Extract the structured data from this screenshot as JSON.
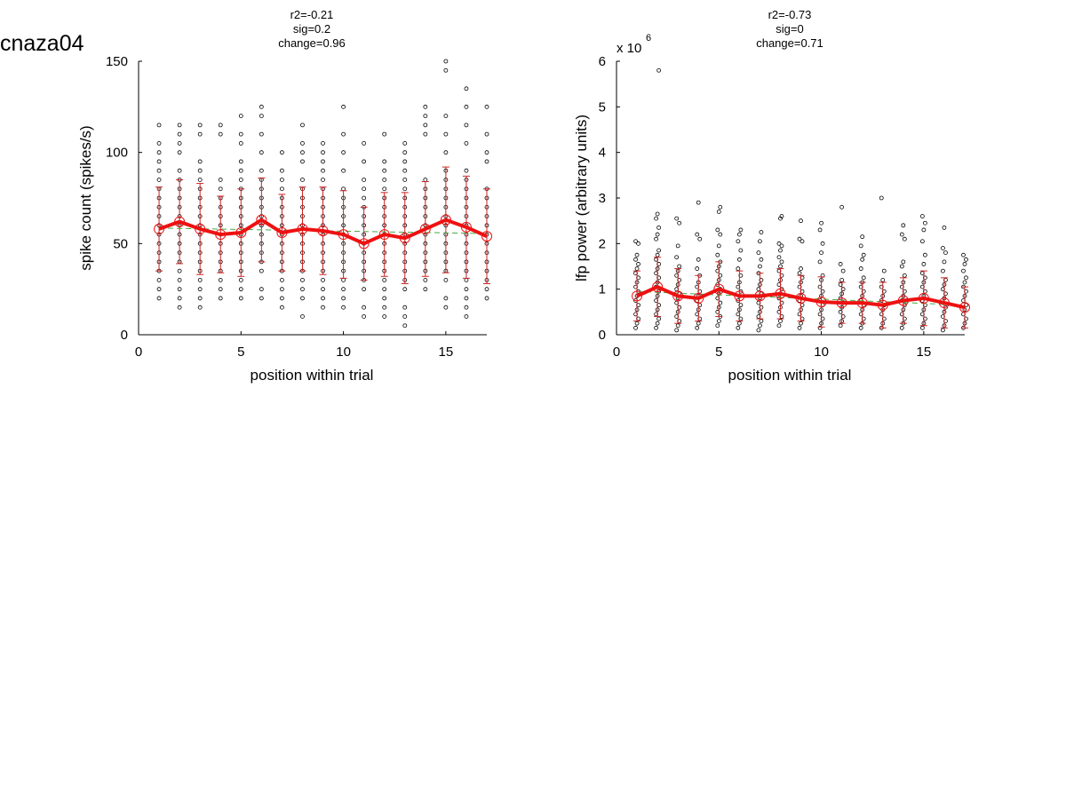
{
  "figure_title": "cnaza04",
  "chart_data": [
    {
      "type": "scatter",
      "stats": [
        "r2=-0.21",
        "sig=0.2",
        "change=0.96"
      ],
      "xlabel": "position within trial",
      "ylabel": "spike count (spikes/s)",
      "xlim": [
        0,
        17
      ],
      "ylim": [
        0,
        150
      ],
      "xticks": [
        0,
        5,
        10,
        15
      ],
      "yticks": [
        0,
        50,
        100,
        150
      ],
      "exponent_label": "",
      "grid": false,
      "colors": {
        "points": "#000000",
        "mean": "#ee1111",
        "errorbar": "#cc2222",
        "fit": "#44aa44"
      },
      "mean": [
        58,
        62,
        58,
        55,
        56,
        63,
        56,
        58,
        57,
        55,
        50,
        55,
        53,
        58,
        63,
        59,
        54
      ],
      "sd": [
        23,
        23,
        25,
        21,
        24,
        23,
        21,
        23,
        24,
        24,
        20,
        23,
        25,
        26,
        29,
        28,
        26
      ],
      "fit_line": {
        "x": [
          1,
          17
        ],
        "y": [
          58.5,
          55.5
        ]
      },
      "points": [
        [
          20,
          25,
          30,
          35,
          40,
          45,
          50,
          55,
          60,
          65,
          70,
          75,
          80,
          85,
          90,
          95,
          100,
          105,
          115
        ],
        [
          15,
          20,
          25,
          30,
          35,
          40,
          45,
          50,
          55,
          60,
          65,
          70,
          75,
          80,
          85,
          90,
          100,
          105,
          110,
          115
        ],
        [
          15,
          20,
          25,
          30,
          35,
          40,
          45,
          50,
          55,
          60,
          65,
          70,
          75,
          80,
          85,
          90,
          95,
          110,
          115
        ],
        [
          20,
          25,
          30,
          35,
          40,
          45,
          50,
          55,
          60,
          65,
          70,
          75,
          80,
          85,
          110,
          115
        ],
        [
          20,
          25,
          30,
          35,
          40,
          45,
          50,
          55,
          60,
          65,
          70,
          75,
          80,
          85,
          90,
          95,
          105,
          110,
          120
        ],
        [
          20,
          25,
          35,
          40,
          45,
          50,
          55,
          60,
          65,
          70,
          75,
          80,
          85,
          90,
          100,
          110,
          120,
          125
        ],
        [
          15,
          20,
          25,
          30,
          35,
          40,
          45,
          50,
          55,
          60,
          65,
          70,
          75,
          80,
          85,
          90,
          100
        ],
        [
          10,
          20,
          25,
          30,
          35,
          40,
          45,
          50,
          55,
          60,
          65,
          70,
          75,
          80,
          85,
          95,
          100,
          105,
          115
        ],
        [
          15,
          20,
          25,
          30,
          35,
          40,
          45,
          50,
          55,
          60,
          65,
          70,
          75,
          80,
          85,
          90,
          95,
          100,
          105
        ],
        [
          15,
          20,
          25,
          30,
          35,
          40,
          45,
          50,
          55,
          60,
          65,
          70,
          75,
          80,
          90,
          100,
          110,
          125
        ],
        [
          10,
          15,
          25,
          30,
          35,
          40,
          45,
          50,
          55,
          60,
          65,
          70,
          75,
          80,
          85,
          95,
          105
        ],
        [
          10,
          15,
          20,
          25,
          30,
          35,
          40,
          45,
          50,
          55,
          60,
          65,
          70,
          75,
          80,
          85,
          90,
          95,
          110
        ],
        [
          5,
          10,
          15,
          25,
          30,
          35,
          40,
          45,
          50,
          55,
          60,
          65,
          70,
          75,
          80,
          85,
          90,
          95,
          100,
          105
        ],
        [
          25,
          30,
          35,
          40,
          45,
          50,
          55,
          60,
          65,
          70,
          75,
          80,
          85,
          110,
          115,
          120,
          125
        ],
        [
          15,
          20,
          30,
          35,
          40,
          45,
          50,
          55,
          60,
          65,
          70,
          75,
          80,
          85,
          90,
          100,
          110,
          120,
          145,
          150
        ],
        [
          10,
          15,
          20,
          25,
          30,
          35,
          40,
          45,
          50,
          55,
          60,
          65,
          70,
          75,
          80,
          85,
          90,
          105,
          115,
          125,
          135
        ],
        [
          20,
          25,
          30,
          35,
          40,
          45,
          50,
          55,
          60,
          65,
          70,
          75,
          80,
          95,
          100,
          110,
          125
        ]
      ]
    },
    {
      "type": "scatter",
      "stats": [
        "r2=-0.73",
        "sig=0",
        "change=0.71"
      ],
      "xlabel": "position within trial",
      "ylabel": "lfp power (arbitrary units)",
      "xlim": [
        0,
        17
      ],
      "ylim": [
        0,
        6
      ],
      "xticks": [
        0,
        5,
        10,
        15
      ],
      "yticks": [
        0,
        1,
        2,
        3,
        4,
        5,
        6
      ],
      "exponent_label": "x 10",
      "exponent_value": "6",
      "grid": false,
      "colors": {
        "points": "#000000",
        "mean": "#ee1111",
        "errorbar": "#cc2222",
        "fit": "#44aa44"
      },
      "mean": [
        0.85,
        1.05,
        0.85,
        0.8,
        1.0,
        0.85,
        0.85,
        0.9,
        0.8,
        0.72,
        0.7,
        0.7,
        0.65,
        0.75,
        0.8,
        0.7,
        0.6
      ],
      "sd": [
        0.55,
        0.65,
        0.6,
        0.5,
        0.6,
        0.55,
        0.5,
        0.55,
        0.5,
        0.55,
        0.45,
        0.45,
        0.5,
        0.5,
        0.6,
        0.55,
        0.45
      ],
      "fit_line": {
        "x": [
          1,
          17
        ],
        "y": [
          0.95,
          0.65
        ]
      },
      "points": [
        [
          0.15,
          0.25,
          0.35,
          0.45,
          0.55,
          0.65,
          0.75,
          0.85,
          0.95,
          1.05,
          1.15,
          1.25,
          1.35,
          1.45,
          1.55,
          1.65,
          1.75,
          2.0,
          2.05
        ],
        [
          0.15,
          0.25,
          0.35,
          0.45,
          0.55,
          0.65,
          0.75,
          0.85,
          0.95,
          1.05,
          1.15,
          1.25,
          1.35,
          1.45,
          1.55,
          1.65,
          1.75,
          1.85,
          2.1,
          2.2,
          2.35,
          2.55,
          2.65,
          5.8
        ],
        [
          0.1,
          0.2,
          0.3,
          0.4,
          0.5,
          0.6,
          0.7,
          0.8,
          0.9,
          1.0,
          1.1,
          1.2,
          1.3,
          1.4,
          1.5,
          1.7,
          1.95,
          2.45,
          2.55
        ],
        [
          0.15,
          0.25,
          0.35,
          0.45,
          0.55,
          0.65,
          0.75,
          0.85,
          0.95,
          1.05,
          1.15,
          1.3,
          1.45,
          1.65,
          2.1,
          2.2,
          2.9
        ],
        [
          0.2,
          0.3,
          0.4,
          0.5,
          0.6,
          0.7,
          0.8,
          0.9,
          1.0,
          1.1,
          1.2,
          1.3,
          1.4,
          1.5,
          1.6,
          1.75,
          1.95,
          2.2,
          2.3,
          2.7,
          2.8
        ],
        [
          0.15,
          0.25,
          0.35,
          0.45,
          0.55,
          0.65,
          0.75,
          0.85,
          0.95,
          1.05,
          1.15,
          1.3,
          1.45,
          1.65,
          1.85,
          2.05,
          2.2,
          2.3
        ],
        [
          0.1,
          0.2,
          0.3,
          0.4,
          0.5,
          0.6,
          0.7,
          0.8,
          0.9,
          1.0,
          1.1,
          1.2,
          1.35,
          1.5,
          1.65,
          1.8,
          2.05,
          2.25
        ],
        [
          0.2,
          0.3,
          0.4,
          0.5,
          0.6,
          0.7,
          0.8,
          0.9,
          1.0,
          1.1,
          1.2,
          1.3,
          1.4,
          1.5,
          1.6,
          1.7,
          1.85,
          1.95,
          2.0,
          2.55,
          2.6
        ],
        [
          0.15,
          0.25,
          0.35,
          0.45,
          0.55,
          0.65,
          0.75,
          0.85,
          0.95,
          1.05,
          1.15,
          1.25,
          1.35,
          1.45,
          2.05,
          2.1,
          2.5
        ],
        [
          0.15,
          0.25,
          0.35,
          0.45,
          0.55,
          0.65,
          0.75,
          0.85,
          0.95,
          1.05,
          1.2,
          1.3,
          1.6,
          1.8,
          2.0,
          2.3,
          2.45
        ],
        [
          0.2,
          0.3,
          0.4,
          0.5,
          0.6,
          0.7,
          0.8,
          0.9,
          1.0,
          1.1,
          1.2,
          1.4,
          1.55,
          2.8
        ],
        [
          0.15,
          0.25,
          0.35,
          0.45,
          0.55,
          0.65,
          0.75,
          0.85,
          0.95,
          1.05,
          1.15,
          1.25,
          1.45,
          1.65,
          1.75,
          1.95,
          2.15
        ],
        [
          0.15,
          0.25,
          0.35,
          0.45,
          0.55,
          0.65,
          0.75,
          0.85,
          0.95,
          1.05,
          1.2,
          1.4,
          3.0
        ],
        [
          0.15,
          0.25,
          0.35,
          0.45,
          0.55,
          0.65,
          0.75,
          0.85,
          0.95,
          1.05,
          1.15,
          1.3,
          1.5,
          1.6,
          2.1,
          2.2,
          2.4
        ],
        [
          0.15,
          0.25,
          0.35,
          0.45,
          0.55,
          0.65,
          0.75,
          0.85,
          0.95,
          1.05,
          1.15,
          1.25,
          1.35,
          1.55,
          1.75,
          2.05,
          2.3,
          2.45,
          2.6
        ],
        [
          0.1,
          0.2,
          0.3,
          0.4,
          0.5,
          0.6,
          0.7,
          0.8,
          0.9,
          1.0,
          1.1,
          1.2,
          1.4,
          1.6,
          1.8,
          1.9,
          2.35
        ],
        [
          0.15,
          0.25,
          0.35,
          0.45,
          0.55,
          0.65,
          0.75,
          0.85,
          0.95,
          1.05,
          1.15,
          1.25,
          1.4,
          1.55,
          1.65,
          1.75
        ]
      ]
    }
  ]
}
